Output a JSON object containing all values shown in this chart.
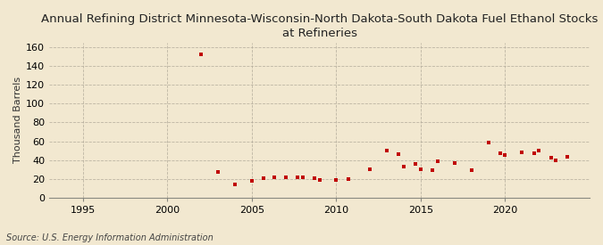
{
  "title": "Annual Refining District Minnesota-Wisconsin-North Dakota-South Dakota Fuel Ethanol Stocks\nat Refineries",
  "ylabel": "Thousand Barrels",
  "source": "Source: U.S. Energy Information Administration",
  "background_color": "#f2e8d0",
  "plot_bg_color": "#f2e8d0",
  "marker_color": "#c00000",
  "years": [
    2002,
    2003,
    2004,
    2005,
    2005.7,
    2006.3,
    2007,
    2007.7,
    2008,
    2008.7,
    2009,
    2010,
    2010.7,
    2012,
    2013,
    2013.7,
    2014,
    2014.7,
    2015,
    2015.7,
    2016,
    2017,
    2018,
    2019,
    2019.7,
    2020,
    2021,
    2021.7,
    2022,
    2022.7,
    2023,
    2023.7
  ],
  "values": [
    153,
    27,
    14,
    18,
    21,
    22,
    22,
    22,
    22,
    21,
    19,
    19,
    20,
    30,
    50,
    46,
    33,
    36,
    30,
    29,
    39,
    37,
    29,
    59,
    47,
    45,
    48,
    47,
    50,
    42,
    40,
    43
  ],
  "xlim": [
    1993,
    2025
  ],
  "ylim": [
    0,
    165
  ],
  "yticks": [
    0,
    20,
    40,
    60,
    80,
    100,
    120,
    140,
    160
  ],
  "xticks": [
    1995,
    2000,
    2005,
    2010,
    2015,
    2020
  ],
  "title_fontsize": 9.5,
  "tick_fontsize": 8,
  "ylabel_fontsize": 8,
  "source_fontsize": 7
}
